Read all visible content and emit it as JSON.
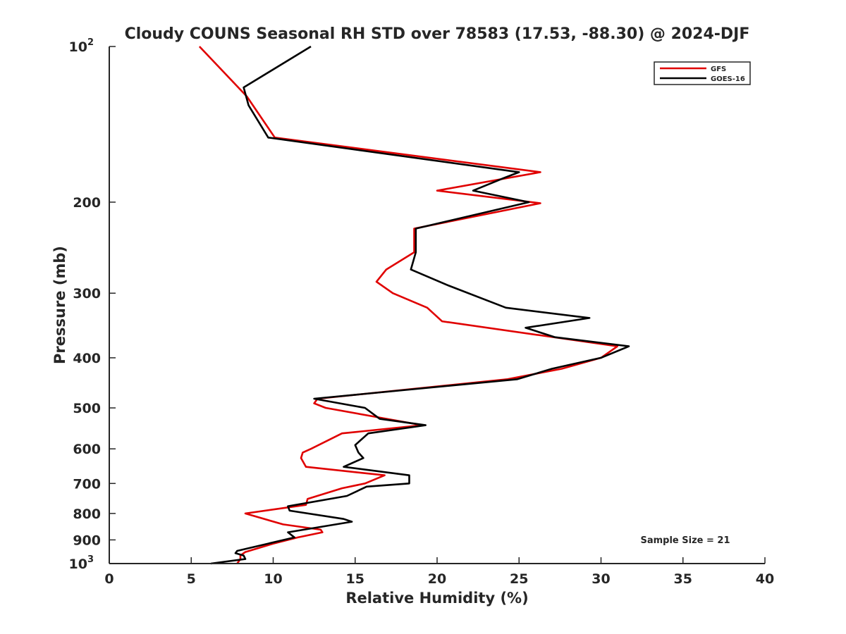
{
  "chart_data": {
    "type": "line",
    "title": "Cloudy COUNS Seasonal RH STD over 78583 (17.53, -88.30) @ 2024-DJF",
    "xlabel": "Relative Humidity (%)",
    "ylabel": "Pressure (mb)",
    "xlim": [
      0,
      40
    ],
    "ylim": [
      100,
      1000
    ],
    "yscale": "log",
    "y_reversed": true,
    "grid": false,
    "xticks": [
      0,
      5,
      10,
      15,
      20,
      25,
      30,
      35,
      40
    ],
    "yticks": [
      {
        "value": 100,
        "base": "10",
        "exp": "2"
      },
      {
        "value": 200,
        "label": "200"
      },
      {
        "value": 300,
        "label": "300"
      },
      {
        "value": 400,
        "label": "400"
      },
      {
        "value": 500,
        "label": "500"
      },
      {
        "value": 600,
        "label": "600"
      },
      {
        "value": 700,
        "label": "700"
      },
      {
        "value": 800,
        "label": "800"
      },
      {
        "value": 900,
        "label": "900"
      },
      {
        "value": 1000,
        "base": "10",
        "exp": "3"
      }
    ],
    "legend_position": "top-right",
    "series": [
      {
        "name": "GFS",
        "color": "#e00000",
        "points": [
          [
            5.5,
            100
          ],
          [
            8.4,
            125
          ],
          [
            10.1,
            150
          ],
          [
            26.3,
            175
          ],
          [
            20.0,
            190
          ],
          [
            26.3,
            201
          ],
          [
            18.6,
            225
          ],
          [
            18.6,
            250
          ],
          [
            16.9,
            270
          ],
          [
            16.3,
            285
          ],
          [
            17.3,
            300
          ],
          [
            19.4,
            320
          ],
          [
            20.3,
            340
          ],
          [
            31.0,
            380
          ],
          [
            30.0,
            400
          ],
          [
            27.6,
            420
          ],
          [
            24.3,
            440
          ],
          [
            12.7,
            480
          ],
          [
            12.5,
            490
          ],
          [
            13.2,
            500
          ],
          [
            19.1,
            540
          ],
          [
            14.2,
            560
          ],
          [
            12.3,
            600
          ],
          [
            11.8,
            610
          ],
          [
            11.7,
            625
          ],
          [
            12.0,
            650
          ],
          [
            16.8,
            675
          ],
          [
            15.6,
            700
          ],
          [
            14.2,
            715
          ],
          [
            12.1,
            750
          ],
          [
            12.0,
            770
          ],
          [
            8.3,
            800
          ],
          [
            10.6,
            840
          ],
          [
            12.9,
            860
          ],
          [
            13.0,
            870
          ],
          [
            11.5,
            890
          ],
          [
            10.0,
            915
          ],
          [
            8.3,
            950
          ],
          [
            8.0,
            965
          ],
          [
            8.0,
            980
          ],
          [
            7.8,
            1000
          ]
        ]
      },
      {
        "name": "GOES-16",
        "color": "#000000",
        "points": [
          [
            12.3,
            100
          ],
          [
            8.2,
            120
          ],
          [
            8.5,
            130
          ],
          [
            9.7,
            150
          ],
          [
            25.0,
            175
          ],
          [
            24.0,
            180
          ],
          [
            22.2,
            190
          ],
          [
            25.6,
            200
          ],
          [
            18.7,
            225
          ],
          [
            18.7,
            250
          ],
          [
            18.4,
            270
          ],
          [
            20.7,
            290
          ],
          [
            24.2,
            320
          ],
          [
            29.3,
            335
          ],
          [
            25.4,
            350
          ],
          [
            27.2,
            365
          ],
          [
            31.7,
            380
          ],
          [
            30.0,
            400
          ],
          [
            27.0,
            420
          ],
          [
            24.9,
            440
          ],
          [
            12.5,
            480
          ],
          [
            15.6,
            500
          ],
          [
            16.5,
            525
          ],
          [
            19.3,
            540
          ],
          [
            15.8,
            560
          ],
          [
            15.0,
            590
          ],
          [
            15.2,
            610
          ],
          [
            15.5,
            625
          ],
          [
            14.3,
            650
          ],
          [
            18.3,
            675
          ],
          [
            18.3,
            700
          ],
          [
            15.7,
            710
          ],
          [
            14.5,
            740
          ],
          [
            10.9,
            775
          ],
          [
            11.0,
            790
          ],
          [
            14.3,
            820
          ],
          [
            14.8,
            830
          ],
          [
            10.9,
            870
          ],
          [
            11.3,
            890
          ],
          [
            7.8,
            945
          ],
          [
            7.7,
            955
          ],
          [
            8.2,
            965
          ],
          [
            8.3,
            980
          ],
          [
            6.2,
            1000
          ]
        ]
      }
    ],
    "annotations": [
      "Sample Size = 21"
    ]
  }
}
